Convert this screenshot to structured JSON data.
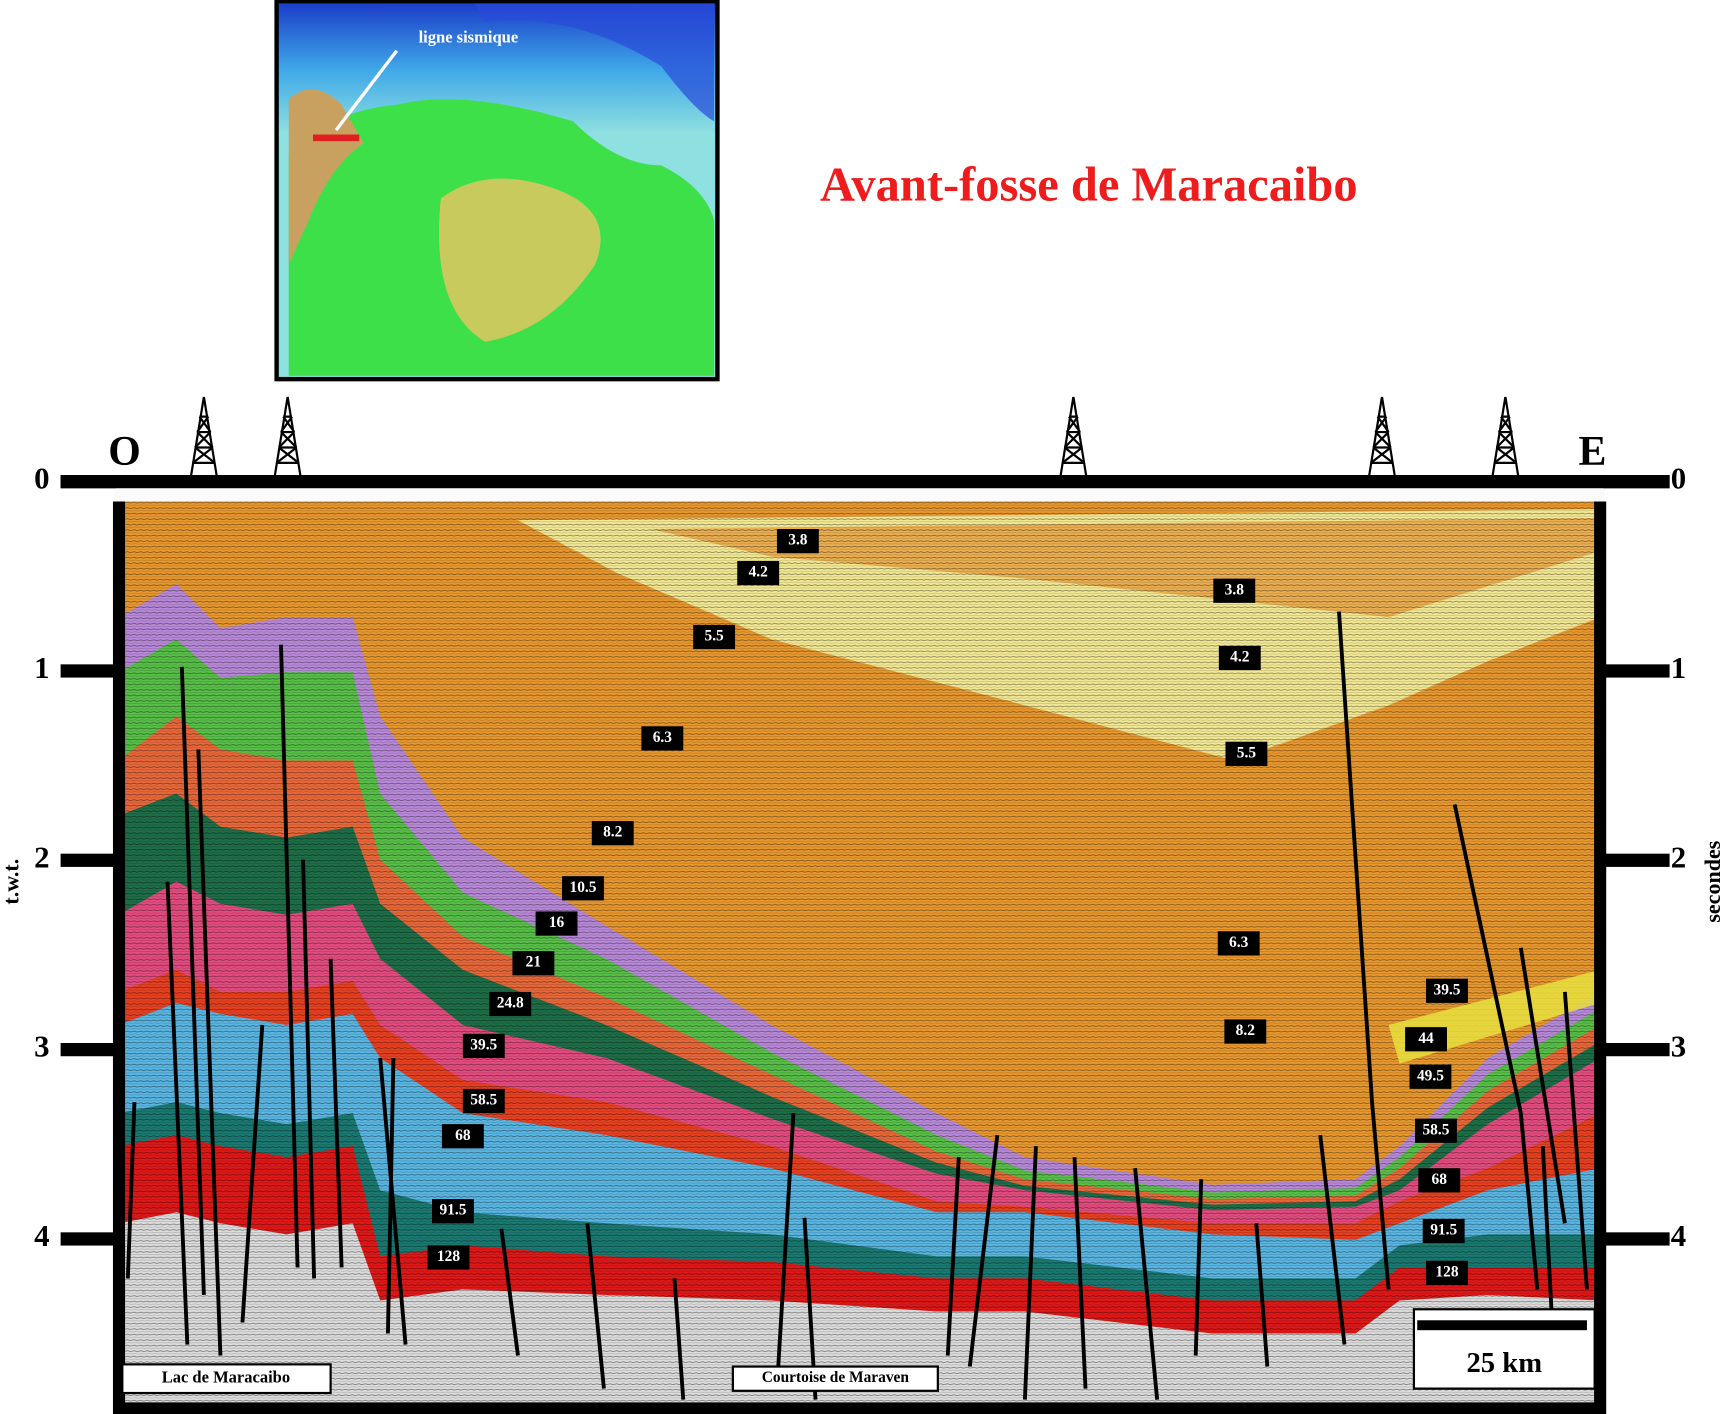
{
  "title": "Avant-fosse de Maracaibo",
  "map": {
    "label": "ligne sismique"
  },
  "section": {
    "west": "O",
    "east": "E",
    "left_axis_label": "t.w.t.",
    "right_axis_label": "secondes",
    "ticks": [
      0,
      1,
      2,
      3,
      4
    ],
    "horizons": [
      3.8,
      4.2,
      5.5,
      6.3,
      8.2,
      10.5,
      16,
      21,
      24.8,
      39.5,
      58.5,
      68,
      91.5,
      128,
      3.8,
      4.2,
      5.5,
      6.3,
      8.2,
      39.5,
      44,
      49.5,
      58.5,
      68,
      91.5,
      128
    ],
    "locations": [
      "Lac de Maracaibo",
      "Courtoise de Maraven"
    ],
    "scale": "25 km"
  }
}
